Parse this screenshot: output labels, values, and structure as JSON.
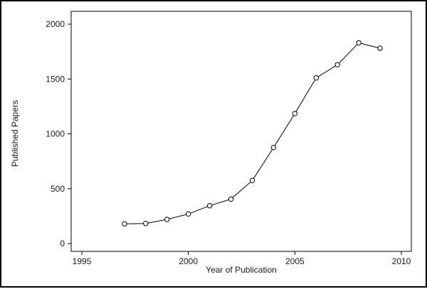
{
  "chart_data": {
    "type": "line",
    "title": "",
    "xlabel": "Year of Publication",
    "ylabel": "Published Papers",
    "xlim": [
      1995,
      2010
    ],
    "ylim": [
      0,
      2000
    ],
    "x_ticks": [
      "1995",
      "2000",
      "2005",
      "2010"
    ],
    "y_ticks": [
      "0",
      "500",
      "1000",
      "1500",
      "2000"
    ],
    "grid": false,
    "legend": "none",
    "marker": "hollow-circle",
    "line_color": "#000000",
    "series": [
      {
        "x": [
          1997,
          1998,
          1999,
          2000,
          2001,
          2002,
          2003,
          2004,
          2005,
          2006,
          2007,
          2008,
          2009
        ],
        "values": [
          180,
          183,
          220,
          270,
          345,
          405,
          575,
          875,
          1185,
          1510,
          1630,
          1830,
          1780
        ]
      }
    ]
  }
}
